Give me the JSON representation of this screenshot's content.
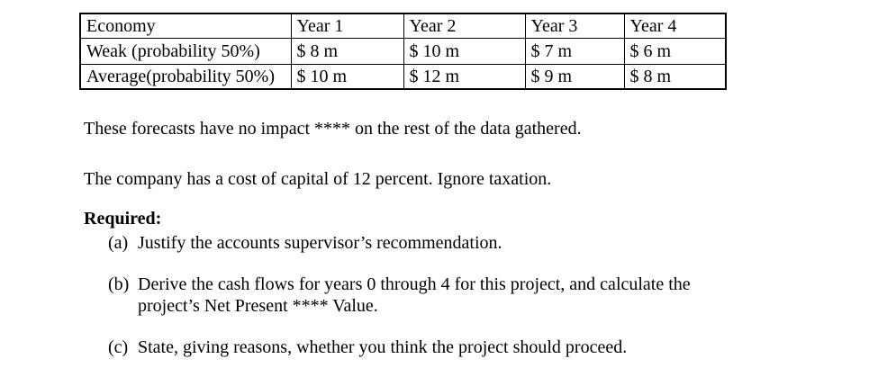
{
  "table": {
    "columns": [
      "Economy",
      "Year 1",
      "Year 2",
      "Year 3",
      "Year 4"
    ],
    "rows": [
      {
        "label": "Weak (probability 50%)",
        "values": [
          "$ 8 m",
          "$ 10 m",
          "$ 7 m",
          "$ 6 m"
        ]
      },
      {
        "label": "Average(probability 50%)",
        "values": [
          "$ 10 m",
          "$ 12 m",
          "$ 9 m",
          "$ 8 m"
        ]
      }
    ]
  },
  "paragraphs": {
    "forecast_note": "These forecasts have no impact **** on the rest of the data gathered.",
    "cost_of_capital": "The company has a cost of capital of 12 percent. Ignore taxation."
  },
  "required": {
    "heading": "Required:",
    "items": [
      {
        "marker": "(a)",
        "lines": [
          "Justify the accounts supervisor’s recommendation."
        ]
      },
      {
        "marker": "(b)",
        "lines": [
          "Derive the cash flows for years 0 through 4 for this project, and calculate the",
          "project’s Net Present **** Value."
        ]
      },
      {
        "marker": "(c)",
        "lines": [
          "State, giving reasons, whether you think the project should proceed."
        ]
      }
    ]
  },
  "colors": {
    "text": "#000000",
    "background": "#ffffff",
    "table_border": "#000000"
  }
}
